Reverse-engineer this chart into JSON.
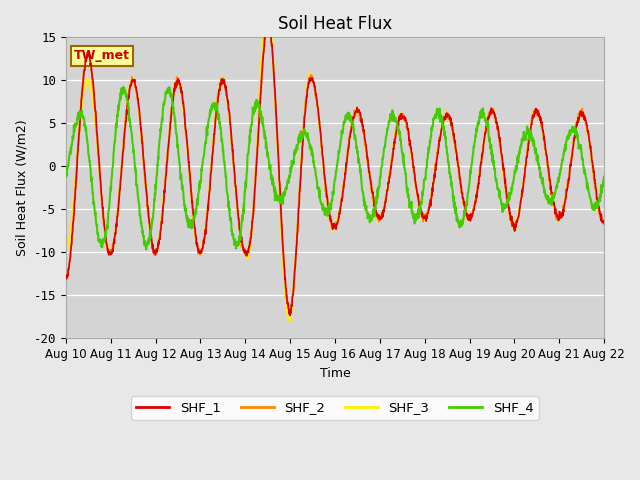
{
  "title": "Soil Heat Flux",
  "xlabel": "Time",
  "ylabel": "Soil Heat Flux (W/m2)",
  "ylim": [
    -20,
    15
  ],
  "fig_bg": "#e8e8e8",
  "plot_bg": "#d4d4d4",
  "annotation_text": "TW_met",
  "annotation_color": "#cc0000",
  "annotation_bg": "#ffff99",
  "annotation_border": "#996600",
  "series_colors": [
    "#dd0000",
    "#ff8800",
    "#ffee00",
    "#44cc00"
  ],
  "series_names": [
    "SHF_1",
    "SHF_2",
    "SHF_3",
    "SHF_4"
  ],
  "x_tick_labels": [
    "Aug 10",
    "Aug 11",
    "Aug 12",
    "Aug 13",
    "Aug 14",
    "Aug 15",
    "Aug 16",
    "Aug 17",
    "Aug 18",
    "Aug 19",
    "Aug 20",
    "Aug 21",
    "Aug 22"
  ],
  "yticks": [
    -20,
    -15,
    -10,
    -5,
    0,
    5,
    10,
    15
  ],
  "n_days": 12,
  "points_per_day": 144
}
